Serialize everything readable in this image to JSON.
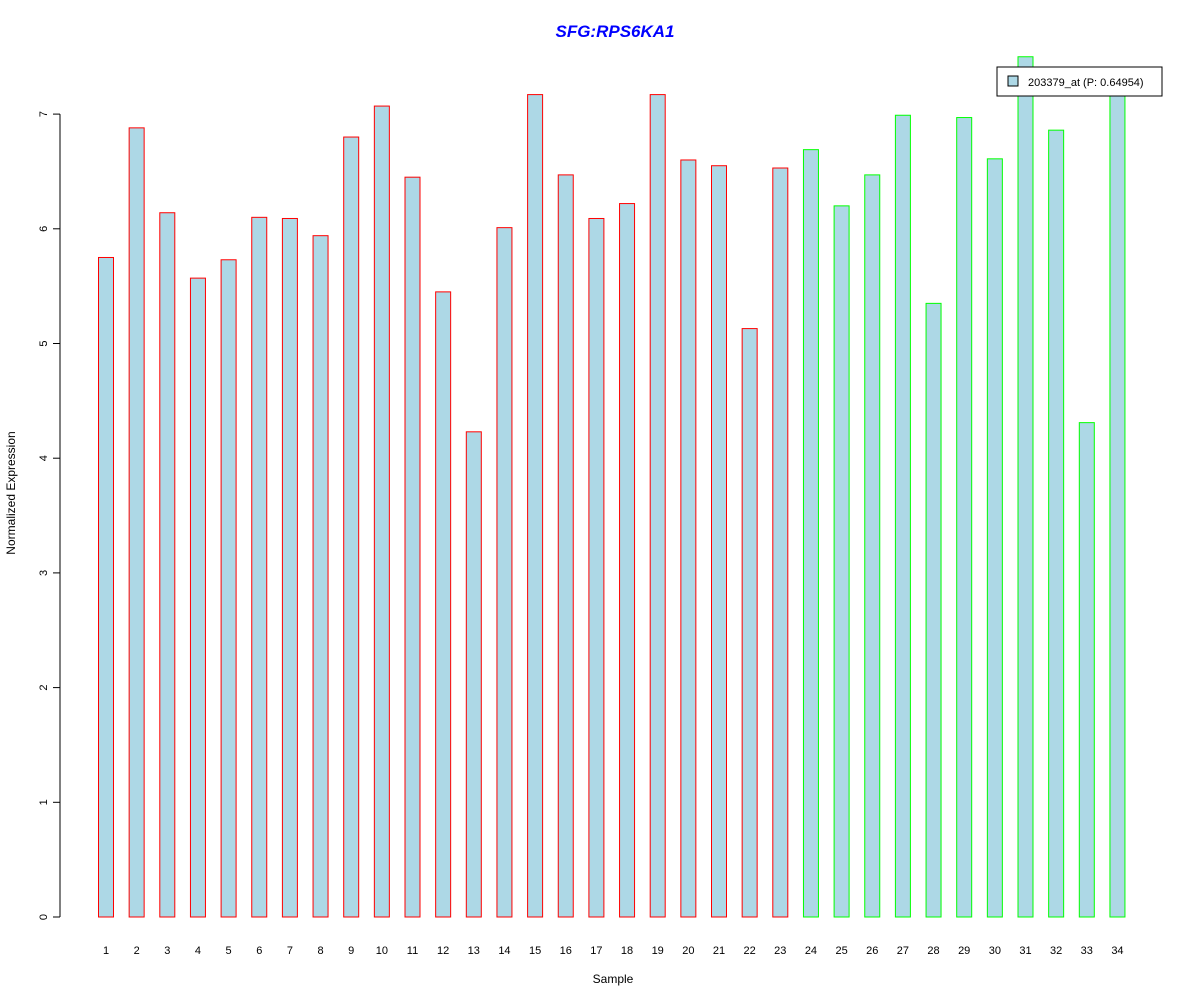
{
  "chart_data": {
    "type": "bar",
    "title": "SFG:RPS6KA1",
    "xlabel": "Sample",
    "ylabel": "Normalized Expression",
    "categories": [
      "1",
      "2",
      "3",
      "4",
      "5",
      "6",
      "7",
      "8",
      "9",
      "10",
      "11",
      "12",
      "13",
      "14",
      "15",
      "16",
      "17",
      "18",
      "19",
      "20",
      "21",
      "22",
      "23",
      "24",
      "25",
      "26",
      "27",
      "28",
      "29",
      "30",
      "31",
      "32",
      "33",
      "34"
    ],
    "values": [
      5.75,
      6.88,
      6.14,
      5.57,
      5.73,
      6.1,
      6.09,
      5.94,
      6.8,
      7.07,
      6.45,
      5.45,
      4.23,
      6.01,
      7.17,
      6.47,
      6.09,
      6.22,
      7.17,
      6.6,
      6.55,
      5.13,
      6.53,
      6.69,
      6.2,
      6.47,
      6.99,
      5.35,
      6.97,
      6.61,
      7.5,
      6.86,
      4.31,
      7.23
    ],
    "group_border_colors": [
      "#ff0000",
      "#ff0000",
      "#ff0000",
      "#ff0000",
      "#ff0000",
      "#ff0000",
      "#ff0000",
      "#ff0000",
      "#ff0000",
      "#ff0000",
      "#ff0000",
      "#ff0000",
      "#ff0000",
      "#ff0000",
      "#ff0000",
      "#ff0000",
      "#ff0000",
      "#ff0000",
      "#ff0000",
      "#ff0000",
      "#ff0000",
      "#ff0000",
      "#ff0000",
      "#00ff00",
      "#00ff00",
      "#00ff00",
      "#00ff00",
      "#00ff00",
      "#00ff00",
      "#00ff00",
      "#00ff00",
      "#00ff00",
      "#00ff00",
      "#00ff00"
    ],
    "bar_fill_color": "#add8e6",
    "title_color": "#0000ff",
    "yticks": [
      0,
      1,
      2,
      3,
      4,
      5,
      6,
      7
    ],
    "ylim": [
      0,
      7.5
    ],
    "grid": false,
    "legend": {
      "position": "top-right",
      "entries": [
        "203379_at (P: 0.64954)"
      ]
    }
  }
}
